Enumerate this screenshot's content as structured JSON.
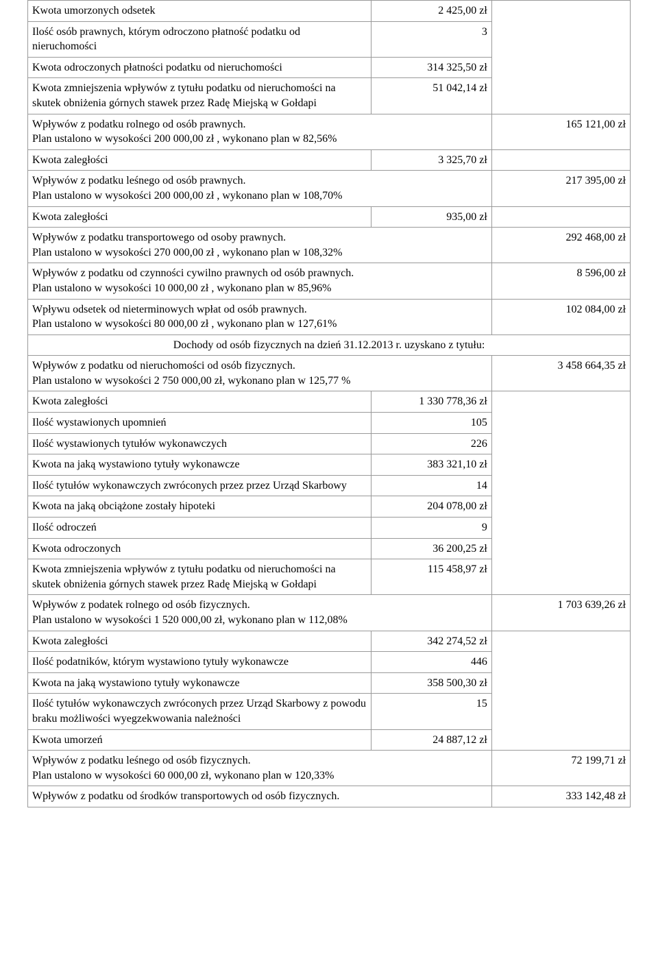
{
  "rows": {
    "r1_label": "Kwota umorzonych odsetek",
    "r1_val": "2 425,00 zł",
    "r2_label": "Ilość osób prawnych, którym odroczono płatność podatku od nieruchomości",
    "r2_val": "3",
    "r3_label": "Kwota odroczonych płatności podatku od nieruchomości",
    "r3_val": "314 325,50 zł",
    "r4_label": "Kwota zmniejszenia wpływów z tytułu podatku od nieruchomości na skutek  obniżenia górnych stawek przez Radę Miejską w Gołdapi",
    "r4_val": "51 042,14 zł",
    "r5_label_l1": "Wpływów z podatku rolnego od  osób prawnych.",
    "r5_label_l2": "Plan ustalono w wysokości 200 000,00 zł , wykonano plan w 82,56%",
    "r5_total": "165 121,00 zł",
    "r6_label": "Kwota zaległości",
    "r6_val": "3 325,70 zł",
    "r7_label_l1": "Wpływów z podatku leśnego od  osób prawnych.",
    "r7_label_l2": "Plan ustalono w wysokości 200 000,00 zł , wykonano plan w 108,70%",
    "r7_total": "217 395,00 zł",
    "r8_label": "Kwota zaległości",
    "r8_val": "935,00 zł",
    "r9_label_l1": "Wpływów z podatku transportowego od osoby prawnych.",
    "r9_label_l2": "Plan ustalono w wysokości 270 000,00 zł , wykonano plan w 108,32%",
    "r9_total": "292 468,00 zł",
    "r10_label_l1": "Wpływów z podatku od czynności cywilno prawnych od osób prawnych.",
    "r10_label_l2": "Plan ustalono w wysokości 10 000,00 zł , wykonano plan w 85,96%",
    "r10_total": "8 596,00 zł",
    "r11_label_l1": "Wpływu odsetek od nieterminowych  wpłat od  osób prawnych.",
    "r11_label_l2": "Plan ustalono w wysokości 80 000,00 zł , wykonano plan w 127,61%",
    "r11_total": "102 084,00 zł",
    "section_heading": "Dochody od osób fizycznych na dzień 31.12.2013 r. uzyskano z tytułu:",
    "r12_label_l1": "Wpływów z podatku od nieruchomości od  osób fizycznych.",
    "r12_label_l2": "Plan ustalono w wysokości 2 750 000,00 zł, wykonano plan w 125,77 %",
    "r12_total": "3 458 664,35 zł",
    "r13_label": "Kwota zaległości",
    "r13_val": "1 330 778,36 zł",
    "r14_label": "Ilość wystawionych upomnień",
    "r14_val": "105",
    "r15_label": "Ilość wystawionych tytułów wykonawczych",
    "r15_val": "226",
    "r16_label": "Kwota na jaką wystawiono tytuły wykonawcze",
    "r16_val": "383 321,10 zł",
    "r17_label": "Ilość tytułów wykonawczych zwróconych przez  przez Urząd Skarbowy",
    "r17_val": "14",
    "r18_label": "Kwota na jaką obciążone zostały hipoteki",
    "r18_val": "204 078,00 zł",
    "r19_label": "Ilość odroczeń",
    "r19_val": "9",
    "r20_label": "Kwota odroczonych",
    "r20_val": "36 200,25 zł",
    "r21_label": "Kwota zmniejszenia wpływów z tytułu podatku od nieruchomości na skutek  obniżenia górnych stawek przez Radę Miejską w Gołdapi",
    "r21_val": "115 458,97 zł",
    "r22_label_l1": "Wpływów z podatek rolnego od osób fizycznych.",
    "r22_label_l2": "Plan ustalono w wysokości 1 520 000,00 zł, wykonano plan w 112,08%",
    "r22_total": "1 703 639,26 zł",
    "r23_label": "Kwota zaległości",
    "r23_val": "342 274,52 zł",
    "r24_label": "Ilość podatników, którym wystawiono tytuły wykonawcze",
    "r24_val": "446",
    "r25_label": "Kwota na jaką wystawiono tytuły wykonawcze",
    "r25_val": "358 500,30 zł",
    "r26_label": "Ilość tytułów wykonawczych zwróconych przez Urząd Skarbowy z powodu braku możliwości wyegzekwowania należności",
    "r26_val": "15",
    "r27_label": "Kwota umorzeń",
    "r27_val": "24 887,12 zł",
    "r28_label_l1": "Wpływów z podatku leśnego od osób fizycznych.",
    "r28_label_l2": "Plan ustalono w wysokości 60 000,00 zł, wykonano plan w 120,33%",
    "r28_total": "72 199,71 zł",
    "r29_label": "Wpływów  z podatku od środków transportowych od  osób fizycznych.",
    "r29_total": "333 142,48 zł"
  }
}
